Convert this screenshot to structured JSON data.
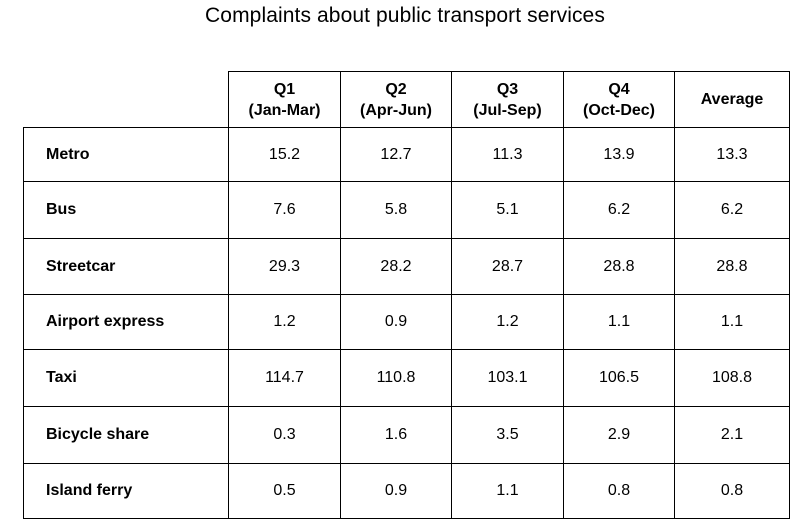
{
  "chart_data": {
    "type": "table",
    "title": "Complaints about public transport services",
    "columns": [
      {
        "line1": "Q1",
        "line2": "(Jan-Mar)"
      },
      {
        "line1": "Q2",
        "line2": "(Apr-Jun)"
      },
      {
        "line1": "Q3",
        "line2": "(Jul-Sep)"
      },
      {
        "line1": "Q4",
        "line2": "(Oct-Dec)"
      },
      {
        "line1": "Average",
        "line2": ""
      }
    ],
    "rows": [
      {
        "label": "Metro",
        "values": [
          "15.2",
          "12.7",
          "11.3",
          "13.9",
          "13.3"
        ]
      },
      {
        "label": "Bus",
        "values": [
          "7.6",
          "5.8",
          "5.1",
          "6.2",
          "6.2"
        ]
      },
      {
        "label": "Streetcar",
        "values": [
          "29.3",
          "28.2",
          "28.7",
          "28.8",
          "28.8"
        ]
      },
      {
        "label": "Airport express",
        "values": [
          "1.2",
          "0.9",
          "1.2",
          "1.1",
          "1.1"
        ]
      },
      {
        "label": "Taxi",
        "values": [
          "114.7",
          "110.8",
          "103.1",
          "106.5",
          "108.8"
        ]
      },
      {
        "label": "Bicycle share",
        "values": [
          "0.3",
          "1.6",
          "3.5",
          "2.9",
          "2.1"
        ]
      },
      {
        "label": "Island ferry",
        "values": [
          "0.5",
          "0.9",
          "1.1",
          "0.8",
          "0.8"
        ]
      }
    ]
  }
}
